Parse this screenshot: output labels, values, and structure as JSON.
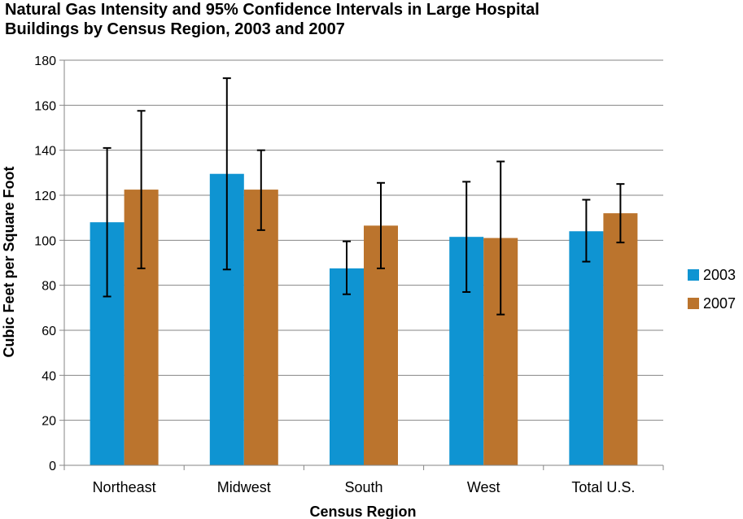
{
  "chart_data": {
    "type": "bar",
    "title": "Natural Gas Intensity and 95% Confidence Intervals in Large Hospital\nBuildings by Census Region, 2003 and 2007",
    "xlabel": "Census Region",
    "ylabel": "Cubic Feet per Square Foot",
    "ylim": [
      0,
      180
    ],
    "yticks": [
      "0",
      "20",
      "40",
      "60",
      "80",
      "100",
      "120",
      "140",
      "160",
      "180"
    ],
    "categories": [
      "Northeast",
      "Midwest",
      "South",
      "West",
      "Total U.S."
    ],
    "series": [
      {
        "name": "2003",
        "color": "#0f94d2",
        "values": [
          108,
          129.5,
          87.5,
          101.5,
          104
        ],
        "ci_low": [
          75,
          87,
          76,
          77,
          90.5
        ],
        "ci_high": [
          141,
          172,
          99.5,
          126,
          118
        ]
      },
      {
        "name": "2007",
        "color": "#bb742d",
        "values": [
          122.5,
          122.5,
          106.5,
          101,
          112
        ],
        "ci_low": [
          87.5,
          104.5,
          87.5,
          67,
          99
        ],
        "ci_high": [
          157.5,
          140,
          125.5,
          135,
          125
        ]
      }
    ],
    "grid": true,
    "legend_position": "right",
    "error_bars": "95% confidence intervals"
  }
}
